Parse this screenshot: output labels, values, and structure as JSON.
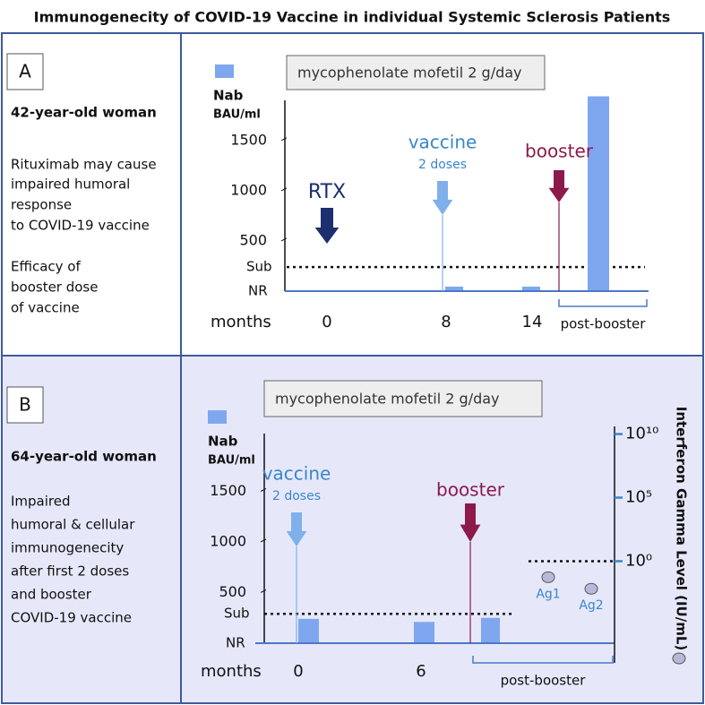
{
  "title": "Immunogenecity of COVID-19 Vaccine in individual Systemic Sclerosis Patients",
  "panels": [
    {
      "label": "A",
      "subject": "42-year-old woman",
      "notes": [
        "Rituximab may cause",
        "impaired humoral",
        "response",
        "to COVID-19 vaccine",
        "Efficacy of",
        "booster dose",
        "of vaccine"
      ],
      "treatment": "mycophenolate mofetil 2 g/day",
      "y_title": "Nab",
      "y_unit": "BAU/ml",
      "ylim": [
        0,
        1900
      ],
      "yticks": [
        500,
        1000,
        1500
      ],
      "threshold": 240,
      "threshold_labels": [
        "Sub",
        "NR"
      ],
      "x_title": "months",
      "xticks": [
        "0",
        "8",
        "14"
      ],
      "span_label": "post-booster",
      "events": [
        {
          "label": "RTX"
        },
        {
          "label": "vaccine",
          "sublabel": "2 doses"
        },
        {
          "label": "booster"
        }
      ],
      "bars": [
        45,
        45,
        1940
      ],
      "bar_color": "#7fa7ef"
    },
    {
      "label": "B",
      "subject": "64-year-old woman",
      "notes": [
        "Impaired",
        "humoral & cellular",
        "immunogenecity",
        "after first 2 doses",
        "and booster",
        "COVID-19 vaccine"
      ],
      "treatment": "mycophenolate mofetil 2 g/day",
      "y_title": "Nab",
      "y_unit": "BAU/ml",
      "ylim": [
        0,
        2070
      ],
      "yticks": [
        500,
        1000,
        1500
      ],
      "threshold": 290,
      "threshold_labels": [
        "Sub",
        "NR"
      ],
      "x_title": "months",
      "xticks": [
        "0",
        "6"
      ],
      "span_label": "post-booster",
      "events": [
        {
          "label": "vaccine",
          "sublabel": "2 doses"
        },
        {
          "label": "booster"
        }
      ],
      "bars": [
        240,
        210,
        250
      ],
      "bar_color": "#7fa7ef",
      "y2_title": "Interferon Gamma Level (IU/mL)",
      "y2_log": true,
      "y2lim": [
        1e-08,
        40000000000
      ],
      "y2ticks": [
        {
          "value": 10000000000,
          "label": "10¹⁰"
        },
        {
          "value": 100000,
          "label": "10⁵"
        },
        {
          "value": 1,
          "label": "10⁰"
        }
      ],
      "y2_threshold": 1,
      "points": [
        {
          "label": "Ag1",
          "value": 0.055
        },
        {
          "label": "Ag2",
          "value": 0.0068
        }
      ],
      "point_color": "#b8b8d8"
    }
  ]
}
